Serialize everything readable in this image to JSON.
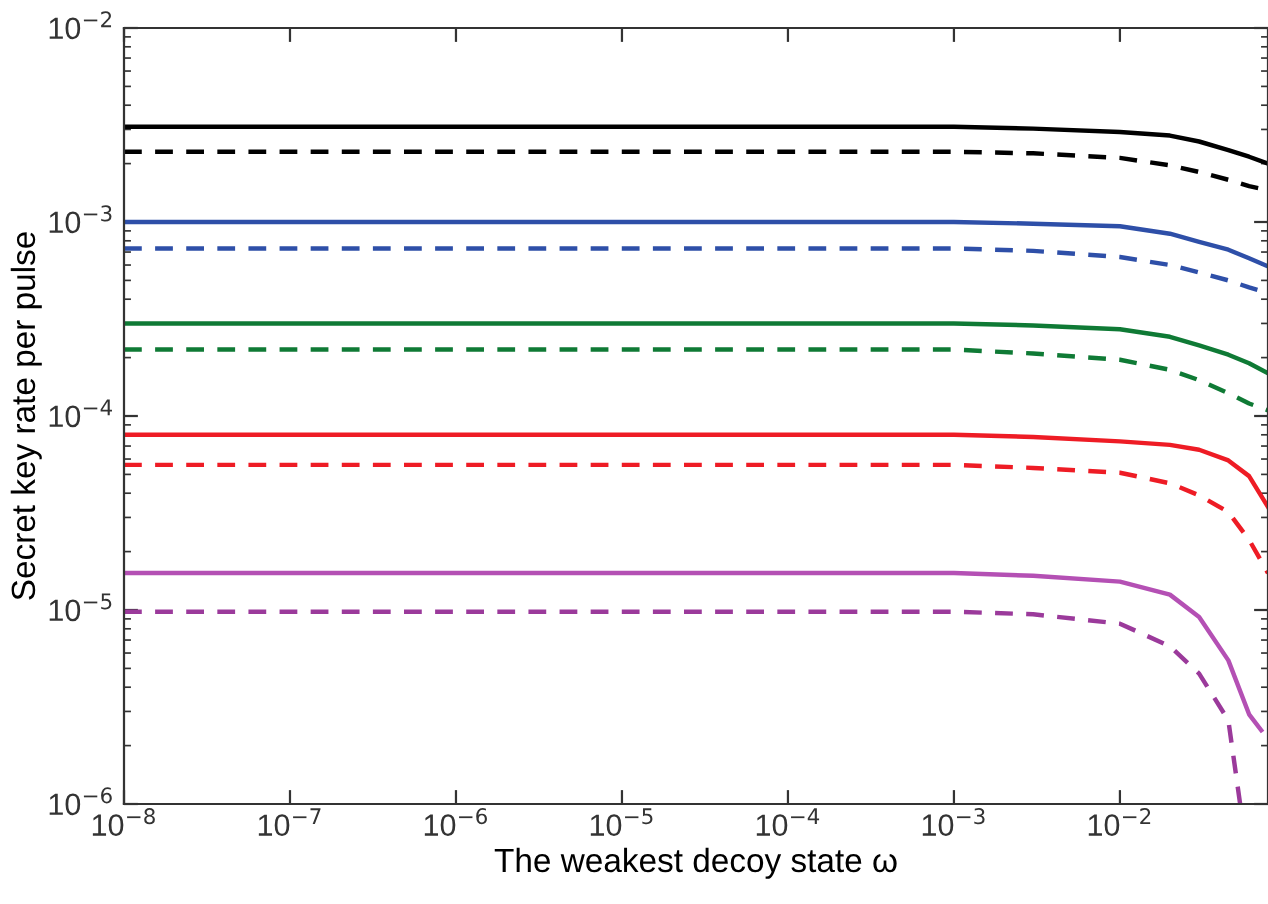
{
  "chart_data": {
    "type": "line",
    "xlabel": "The weakest decoy state ω",
    "ylabel": "Secret key rate per pulse",
    "log": "xy",
    "grid": false,
    "legend": false,
    "marker": "none",
    "x": [
      1e-08,
      1e-06,
      0.0001,
      0.001,
      0.003,
      0.01,
      0.02,
      0.03,
      0.045,
      0.06,
      0.078
    ],
    "xlim": [
      1e-08,
      0.078
    ],
    "ylim": [
      1e-06,
      0.01
    ],
    "xticks": [
      {
        "value": 1e-08,
        "label": "10$^{−8}$"
      },
      {
        "value": 1e-07,
        "label": "10$^{−7}$"
      },
      {
        "value": 1e-06,
        "label": "10$^{−6}$"
      },
      {
        "value": 1e-05,
        "label": "10$^{−5}$"
      },
      {
        "value": 0.0001,
        "label": "10$^{−4}$"
      },
      {
        "value": 0.001,
        "label": "10$^{−3}$"
      },
      {
        "value": 0.01,
        "label": "10$^{−2}$"
      }
    ],
    "yticks": [
      {
        "value": 1e-06,
        "label": "10$^{−6}$"
      },
      {
        "value": 1e-05,
        "label": "10$^{−5}$"
      },
      {
        "value": 0.0001,
        "label": "10$^{−4}$"
      },
      {
        "value": 0.001,
        "label": "10$^{−3}$"
      },
      {
        "value": 0.01,
        "label": "10$^{−2}$"
      }
    ],
    "series": [
      {
        "color": "#000000",
        "line_style": "solid",
        "values": [
          0.0031,
          0.0031,
          0.0031,
          0.0031,
          0.00303,
          0.00291,
          0.00279,
          0.0026,
          0.00235,
          0.00217,
          0.002
        ]
      },
      {
        "color": "#000000",
        "line_style": "dashed",
        "values": [
          0.0023,
          0.0023,
          0.0023,
          0.0023,
          0.00226,
          0.00214,
          0.00196,
          0.00181,
          0.00165,
          0.00153,
          0.00146
        ]
      },
      {
        "color": "#2e4fa8",
        "line_style": "solid",
        "values": [
          0.001,
          0.001,
          0.001,
          0.001,
          0.00098,
          0.00095,
          0.00087,
          0.00079,
          0.00072,
          0.00065,
          0.00059
        ]
      },
      {
        "color": "#2e4fa8",
        "line_style": "dashed",
        "values": [
          0.00073,
          0.00073,
          0.00073,
          0.00073,
          0.00071,
          0.00066,
          0.0006,
          0.00055,
          0.0005,
          0.00046,
          0.00043
        ]
      },
      {
        "color": "#0f7a35",
        "line_style": "solid",
        "values": [
          0.0003,
          0.0003,
          0.0003,
          0.0003,
          0.000293,
          0.00028,
          0.000256,
          0.000231,
          0.000207,
          0.000187,
          0.000166
        ]
      },
      {
        "color": "#0f7a35",
        "line_style": "dashed",
        "values": [
          0.00022,
          0.00022,
          0.00022,
          0.00022,
          0.00021,
          0.000195,
          0.000173,
          0.000153,
          0.000131,
          0.000116,
          0.000107
        ]
      },
      {
        "color": "#ee1c25",
        "line_style": "solid",
        "values": [
          8e-05,
          8e-05,
          8e-05,
          8e-05,
          7.8e-05,
          7.4e-05,
          7.1e-05,
          6.7e-05,
          5.9e-05,
          4.9e-05,
          3.4e-05
        ]
      },
      {
        "color": "#ee1c25",
        "line_style": "dashed",
        "values": [
          5.6e-05,
          5.6e-05,
          5.6e-05,
          5.6e-05,
          5.4e-05,
          5.1e-05,
          4.5e-05,
          3.9e-05,
          3.2e-05,
          2.3e-05,
          1.55e-05
        ]
      },
      {
        "color": "#b450b4",
        "line_style": "solid",
        "x": [
          1e-08,
          1e-06,
          0.0001,
          0.001,
          0.003,
          0.01,
          0.02,
          0.03,
          0.045,
          0.06,
          0.071
        ],
        "values": [
          1.55e-05,
          1.55e-05,
          1.55e-05,
          1.55e-05,
          1.5e-05,
          1.4e-05,
          1.2e-05,
          9.2e-06,
          5.5e-06,
          2.9e-06,
          2.4e-06
        ]
      },
      {
        "color": "#9b3a9b",
        "line_style": "dashed",
        "x": [
          1e-08,
          1e-06,
          0.0001,
          0.001,
          0.003,
          0.01,
          0.02,
          0.03,
          0.045,
          0.053
        ],
        "values": [
          9.8e-06,
          9.8e-06,
          9.8e-06,
          9.8e-06,
          9.5e-06,
          8.5e-06,
          6.5e-06,
          4.7e-06,
          2.7e-06,
          1e-06
        ]
      }
    ]
  }
}
